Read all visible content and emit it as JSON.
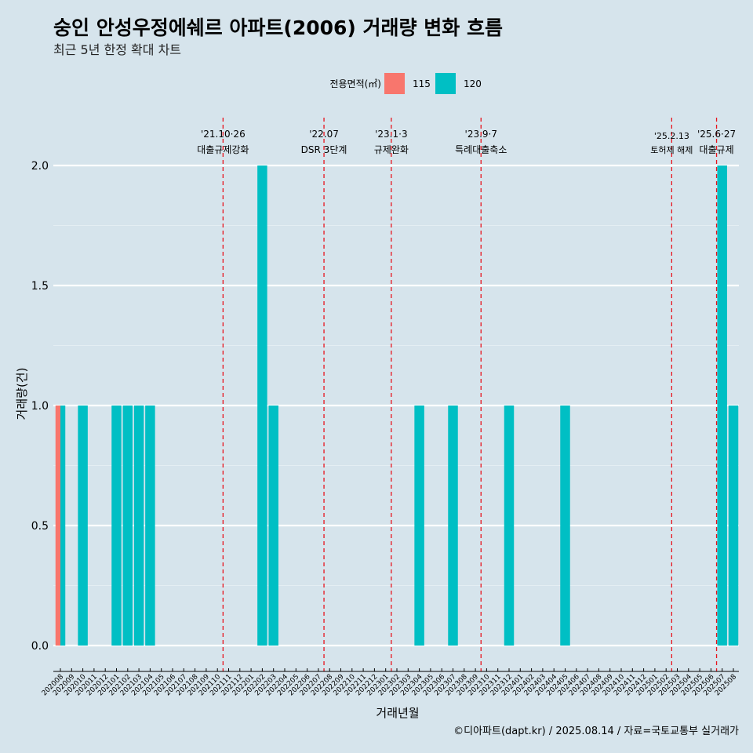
{
  "header": {
    "title": "숭인 안성우정에쉐르 아파트(2006) 거래량 변화 흐름",
    "subtitle": "최근 5년 한정 확대 차트"
  },
  "legend": {
    "title": "전용면적(㎡)",
    "items": [
      {
        "label": "115",
        "color": "#f8766d"
      },
      {
        "label": "120",
        "color": "#00bfc4"
      }
    ]
  },
  "caption": "©디아파트(dapt.kr) / 2025.08.14 / 자료=국토교통부 실거래가",
  "chart_data": {
    "type": "bar",
    "xlabel": "거래년월",
    "ylabel": "거래량(건)",
    "ylim": [
      0,
      2
    ],
    "yticks": [
      "0.0",
      "0.5",
      "1.0",
      "1.5",
      "2.0"
    ],
    "categories": [
      "202008",
      "202009",
      "202010",
      "202011",
      "202012",
      "202101",
      "202102",
      "202103",
      "202104",
      "202105",
      "202106",
      "202107",
      "202108",
      "202109",
      "202110",
      "202111",
      "202112",
      "202201",
      "202202",
      "202203",
      "202204",
      "202205",
      "202206",
      "202207",
      "202208",
      "202209",
      "202210",
      "202211",
      "202212",
      "202301",
      "202302",
      "202303",
      "202304",
      "202305",
      "202306",
      "202307",
      "202308",
      "202309",
      "202310",
      "202311",
      "202312",
      "202401",
      "202402",
      "202403",
      "202404",
      "202405",
      "202406",
      "202407",
      "202408",
      "202409",
      "202410",
      "202411",
      "202412",
      "202501",
      "202502",
      "202503",
      "202504",
      "202505",
      "202506",
      "202507",
      "202508"
    ],
    "series": [
      {
        "name": "115",
        "color": "#f8766d",
        "points": [
          {
            "x": "202008",
            "y": 1
          }
        ]
      },
      {
        "name": "120",
        "color": "#00bfc4",
        "points": [
          {
            "x": "202008",
            "y": 1
          },
          {
            "x": "202010",
            "y": 1
          },
          {
            "x": "202101",
            "y": 1
          },
          {
            "x": "202102",
            "y": 1
          },
          {
            "x": "202103",
            "y": 1
          },
          {
            "x": "202104",
            "y": 1
          },
          {
            "x": "202202",
            "y": 2
          },
          {
            "x": "202203",
            "y": 1
          },
          {
            "x": "202304",
            "y": 1
          },
          {
            "x": "202307",
            "y": 1
          },
          {
            "x": "202312",
            "y": 1
          },
          {
            "x": "202405",
            "y": 1
          },
          {
            "x": "202507",
            "y": 2
          },
          {
            "x": "202508",
            "y": 1
          }
        ]
      }
    ],
    "events": [
      {
        "x": "202110",
        "date": "'21.10·26",
        "label": "대출규제강화"
      },
      {
        "x": "202207",
        "date": "'22.07",
        "label": "DSR 3단계"
      },
      {
        "x": "202301",
        "date": "'23.1·3",
        "label": "규제완화"
      },
      {
        "x": "202309",
        "date": "'23.9·7",
        "label": "특례대출축소"
      },
      {
        "x": "202502",
        "date": "'25.2.13",
        "label": "토허제 해제"
      },
      {
        "x": "202506",
        "date": "'25.6·27",
        "label": "대출규제"
      }
    ],
    "grid": true,
    "legend_position": "top"
  }
}
